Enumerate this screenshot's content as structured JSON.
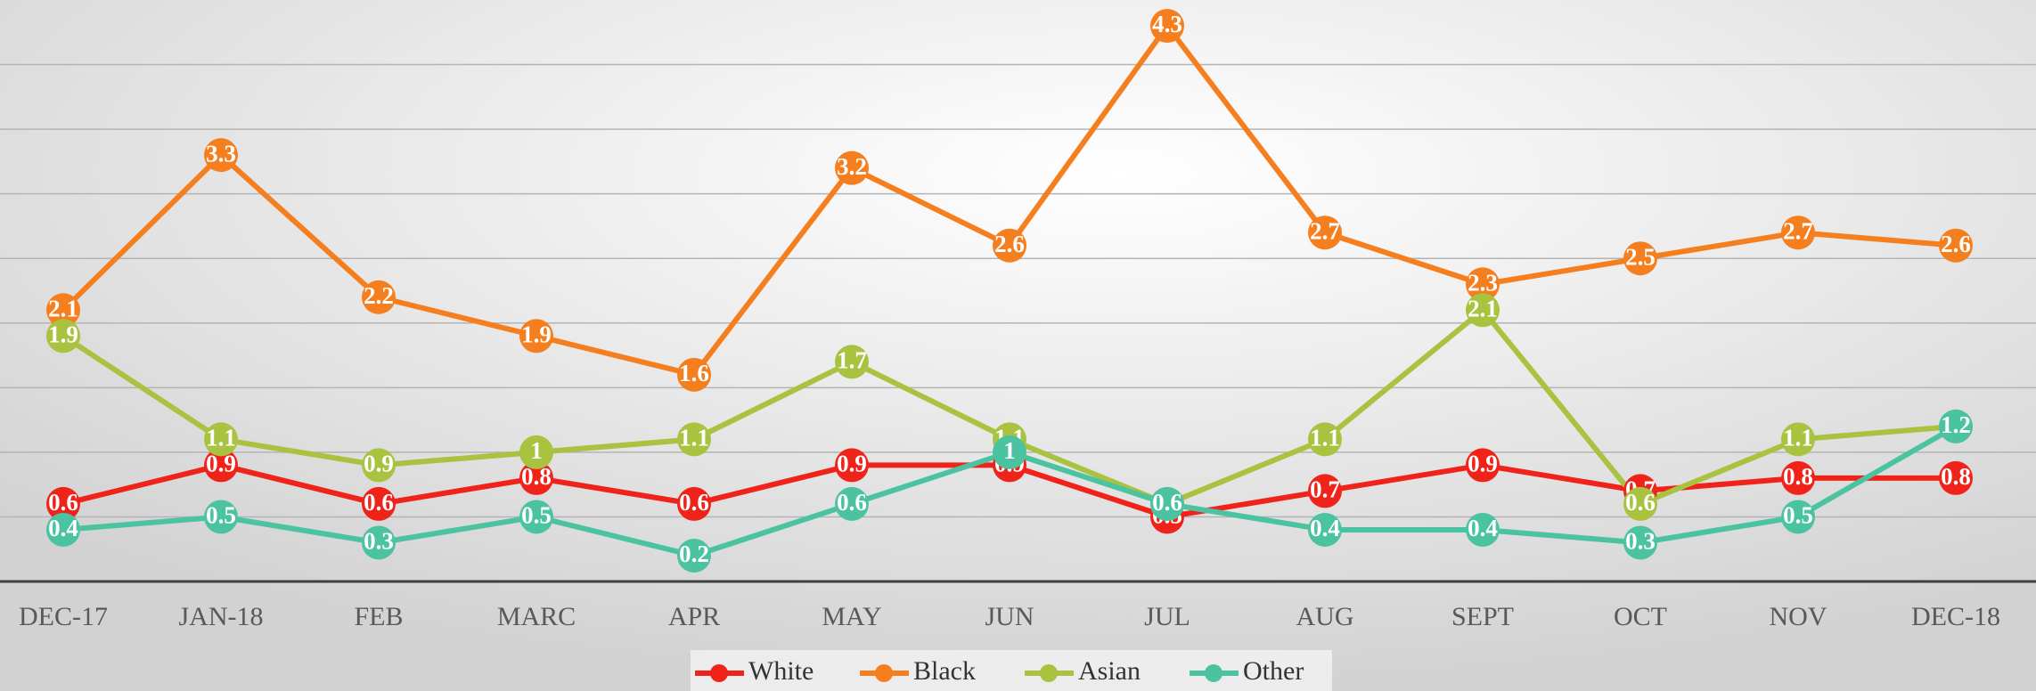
{
  "chart_data": {
    "type": "line",
    "categories": [
      "DEC-17",
      "JAN-18",
      "FEB",
      "MARC",
      "APR",
      "MAY",
      "JUN",
      "JUL",
      "AUG",
      "SEPT",
      "OCT",
      "NOV",
      "DEC-18"
    ],
    "series": [
      {
        "name": "White",
        "color": "#f0231a",
        "values": [
          0.6,
          0.9,
          0.6,
          0.8,
          0.6,
          0.9,
          0.9,
          0.5,
          0.7,
          0.9,
          0.7,
          0.8,
          0.8
        ]
      },
      {
        "name": "Black",
        "color": "#f57f1f",
        "values": [
          2.1,
          3.3,
          2.2,
          1.9,
          1.6,
          3.2,
          2.6,
          4.3,
          2.7,
          2.3,
          2.5,
          2.7,
          2.6
        ]
      },
      {
        "name": "Asian",
        "color": "#a9c23f",
        "values": [
          1.9,
          1.1,
          0.9,
          1,
          1.1,
          1.7,
          1.1,
          0.6,
          1.1,
          2.1,
          0.6,
          1.1,
          1.2
        ]
      },
      {
        "name": "Other",
        "color": "#4cc3a0",
        "values": [
          0.4,
          0.5,
          0.3,
          0.5,
          0.2,
          0.6,
          1.0,
          0.6,
          0.4,
          0.4,
          0.3,
          0.5,
          1.2
        ]
      }
    ],
    "ylim": [
      0,
      4.5
    ],
    "yticks": [
      0,
      0.5,
      1,
      1.5,
      2,
      2.5,
      3,
      3.5,
      4
    ],
    "grid": true,
    "legend": "bottom"
  }
}
